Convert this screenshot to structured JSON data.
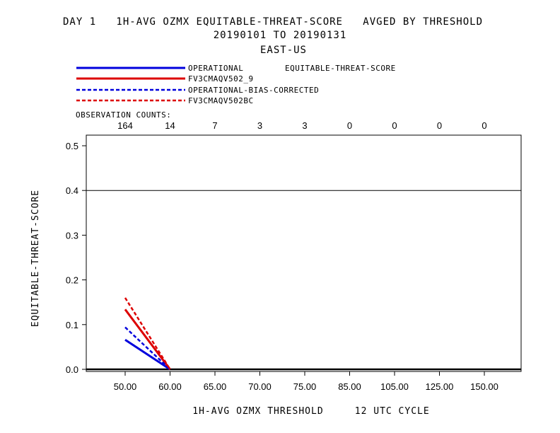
{
  "header": {
    "title_line1": "DAY 1   1H-AVG OZMX EQUITABLE-THREAT-SCORE   AVGED BY THRESHOLD",
    "title_line2": "20190101 TO 20190131",
    "title_line3": "EAST-US"
  },
  "legend": {
    "metric_label": "EQUITABLE-THREAT-SCORE",
    "entries": [
      {
        "name": "OPERATIONAL",
        "color": "#0000dd",
        "dashed": false
      },
      {
        "name": "FV3CMAQV502_9",
        "color": "#dd0000",
        "dashed": false
      },
      {
        "name": "OPERATIONAL-BIAS-CORRECTED",
        "color": "#0000dd",
        "dashed": true
      },
      {
        "name": "FV3CMAQV502BC",
        "color": "#dd0000",
        "dashed": true
      }
    ]
  },
  "observation_counts": {
    "label": "OBSERVATION COUNTS:",
    "values": [
      "164",
      "14",
      "7",
      "3",
      "3",
      "0",
      "0",
      "0",
      "0"
    ]
  },
  "chart_data": {
    "type": "line",
    "categories": [
      "50.00",
      "60.00",
      "65.00",
      "70.00",
      "75.00",
      "85.00",
      "105.00",
      "125.00",
      "150.00"
    ],
    "xlabel": "1H-AVG OZMX THRESHOLD     12 UTC CYCLE",
    "ylabel": "EQUITABLE-THREAT-SCORE",
    "ylim": [
      0,
      0.5
    ],
    "yticks": [
      "0.0",
      "0.1",
      "0.2",
      "0.3",
      "0.4",
      "0.5"
    ],
    "reference_line": 0.4,
    "series": [
      {
        "name": "OPERATIONAL",
        "values": [
          0.066,
          0.0,
          0.0,
          0.0,
          0.0,
          0.0,
          0.0,
          0.0,
          0.0
        ]
      },
      {
        "name": "FV3CMAQV502_9",
        "values": [
          0.134,
          0.0,
          0.0,
          0.0,
          0.0,
          0.0,
          0.0,
          0.0,
          0.0
        ]
      },
      {
        "name": "OPERATIONAL-BIAS-CORRECTED",
        "values": [
          0.094,
          0.0,
          0.0,
          0.0,
          0.0,
          0.0,
          0.0,
          0.0,
          0.0
        ]
      },
      {
        "name": "FV3CMAQV502BC",
        "values": [
          0.16,
          0.0,
          0.0,
          0.0,
          0.0,
          0.0,
          0.0,
          0.0,
          0.0
        ]
      }
    ]
  }
}
